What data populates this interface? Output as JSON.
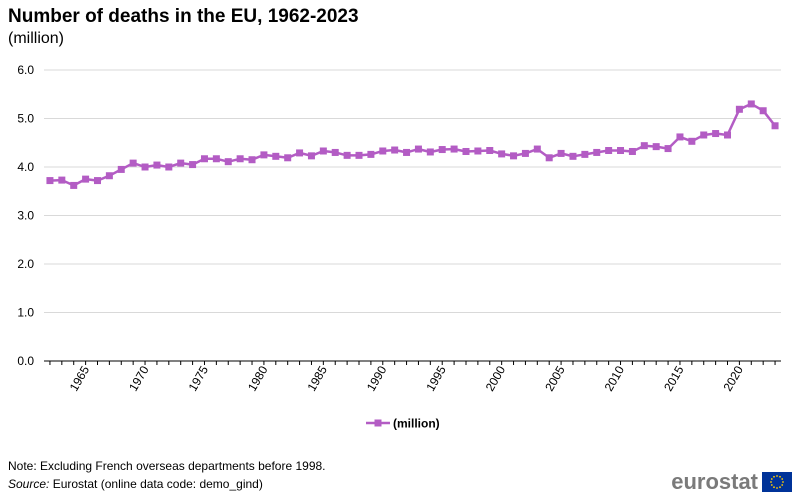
{
  "title": "Number of deaths in the EU, 1962-2023",
  "subtitle": "(million)",
  "note": "Note: Excluding French overseas departments before 1998.",
  "source_label": "Source:",
  "source_text": "Eurostat (online data code: demo_gind)",
  "brand": "eurostat",
  "colors": {
    "series": "#b35cc4",
    "grid": "#d9d9d9",
    "axis": "#000000",
    "flag": "#003399",
    "stars": "#ffcc00"
  },
  "chart_data": {
    "type": "line",
    "title": "Number of deaths in the EU, 1962-2023",
    "xlabel": "",
    "ylabel": "(million)",
    "ylim": [
      0,
      6
    ],
    "yticks": [
      0.0,
      1.0,
      2.0,
      3.0,
      4.0,
      5.0,
      6.0
    ],
    "xtick_labels": [
      "1965",
      "1970",
      "1975",
      "1980",
      "1985",
      "1990",
      "1995",
      "2000",
      "2005",
      "2010",
      "2015",
      "2020"
    ],
    "grid": true,
    "legend_position": "bottom",
    "x": [
      1962,
      1963,
      1964,
      1965,
      1966,
      1967,
      1968,
      1969,
      1970,
      1971,
      1972,
      1973,
      1974,
      1975,
      1976,
      1977,
      1978,
      1979,
      1980,
      1981,
      1982,
      1983,
      1984,
      1985,
      1986,
      1987,
      1988,
      1989,
      1990,
      1991,
      1992,
      1993,
      1994,
      1995,
      1996,
      1997,
      1998,
      1999,
      2000,
      2001,
      2002,
      2003,
      2004,
      2005,
      2006,
      2007,
      2008,
      2009,
      2010,
      2011,
      2012,
      2013,
      2014,
      2015,
      2016,
      2017,
      2018,
      2019,
      2020,
      2021,
      2022,
      2023
    ],
    "series": [
      {
        "name": "(million)",
        "values": [
          3.72,
          3.73,
          3.62,
          3.75,
          3.72,
          3.82,
          3.95,
          4.08,
          4.0,
          4.04,
          4.0,
          4.08,
          4.05,
          4.17,
          4.17,
          4.11,
          4.17,
          4.15,
          4.25,
          4.22,
          4.19,
          4.29,
          4.23,
          4.33,
          4.3,
          4.24,
          4.24,
          4.26,
          4.33,
          4.35,
          4.3,
          4.37,
          4.31,
          4.36,
          4.37,
          4.32,
          4.33,
          4.34,
          4.27,
          4.23,
          4.28,
          4.37,
          4.19,
          4.28,
          4.22,
          4.26,
          4.3,
          4.34,
          4.34,
          4.32,
          4.44,
          4.42,
          4.38,
          4.62,
          4.53,
          4.66,
          4.69,
          4.66,
          5.19,
          5.3,
          5.16,
          4.85
        ]
      }
    ]
  }
}
